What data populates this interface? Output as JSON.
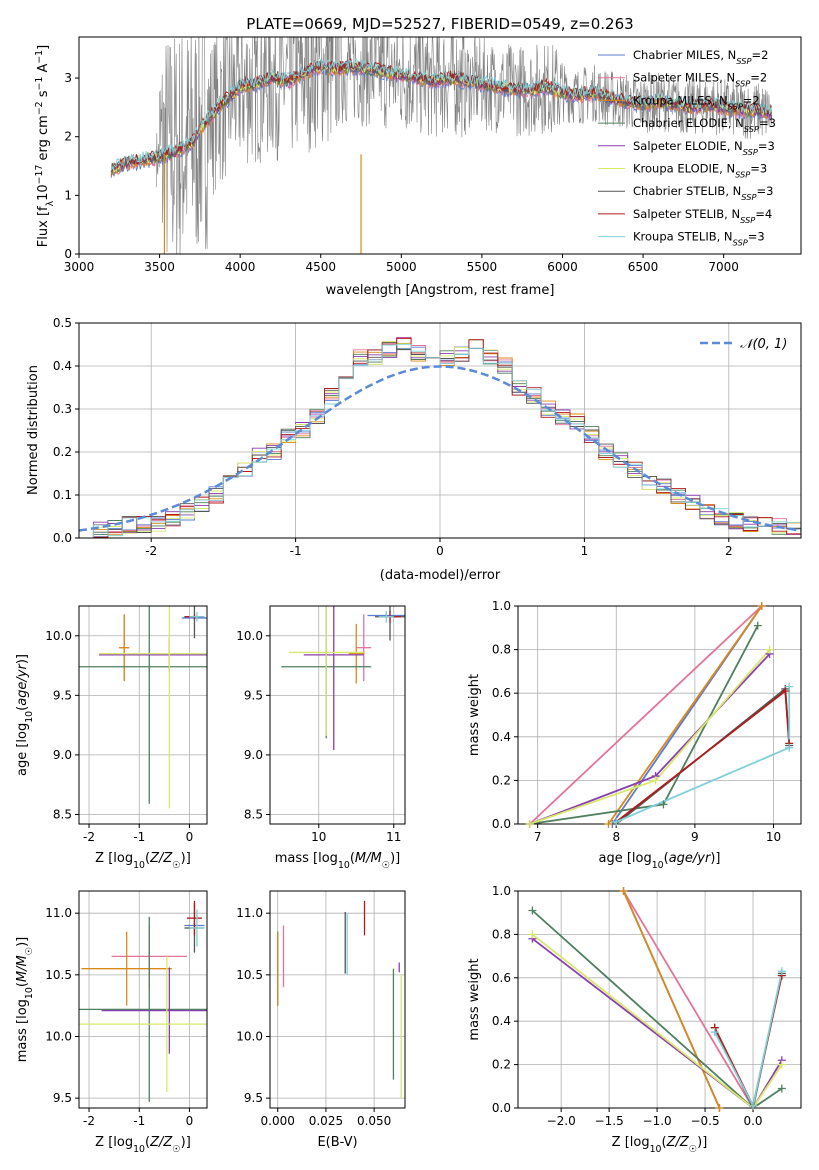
{
  "figure": {
    "title": "PLATE=0669, MJD=52527, FIBERID=0549, z=0.263"
  },
  "series_colors": {
    "Chabrier MILES": "#5b7bd5",
    "Salpeter MILES": "#e57399",
    "Kroupa MILES": "#d98a1a",
    "Chabrier ELODIE": "#4f7f5f",
    "Salpeter ELODIE": "#8a3fb0",
    "Kroupa ELODIE": "#d8e86a",
    "Chabrier STELIB": "#555555",
    "Salpeter STELIB": "#b01c1c",
    "Kroupa STELIB": "#7fd0d8",
    "observed": "#808080"
  },
  "chart_data": [
    {
      "type": "line",
      "title": "PLATE=0669, MJD=52527, FIBERID=0549, z=0.263",
      "xlabel": "wavelength [Angstrom, rest frame]",
      "ylabel": "Flux [fλ10⁻¹⁷ erg cm⁻² s⁻¹ A⁻¹]",
      "xlim": [
        3000,
        7480
      ],
      "ylim": [
        0,
        3.7
      ],
      "xticks": [
        3000,
        3500,
        4000,
        4500,
        5000,
        5500,
        6000,
        6500,
        7000
      ],
      "yticks": [
        0,
        1,
        2,
        3
      ],
      "grid": false,
      "legend_position": "top-right",
      "legend": [
        {
          "name": "Chabrier MILES",
          "sub": "SSP",
          "n": "2",
          "color": "#5b7bd5"
        },
        {
          "name": "Salpeter MILES",
          "sub": "SSP",
          "n": "2",
          "color": "#e57399"
        },
        {
          "name": "Kroupa MILES",
          "sub": "SSP",
          "n": "2",
          "color": "#d98a1a"
        },
        {
          "name": "Chabrier ELODIE",
          "sub": "SSP",
          "n": "3",
          "color": "#4f7f5f"
        },
        {
          "name": "Salpeter ELODIE",
          "sub": "SSP",
          "n": "3",
          "color": "#8a3fb0"
        },
        {
          "name": "Kroupa ELODIE",
          "sub": "SSP",
          "n": "3",
          "color": "#d8e86a"
        },
        {
          "name": "Chabrier STELIB",
          "sub": "SSP",
          "n": "3",
          "color": "#555555"
        },
        {
          "name": "Salpeter STELIB",
          "sub": "SSP",
          "n": "4",
          "color": "#b01c1c"
        },
        {
          "name": "Kroupa STELIB",
          "sub": "SSP",
          "n": "3",
          "color": "#7fd0d8"
        }
      ],
      "model_spectrum": {
        "x": [
          3200,
          3300,
          3400,
          3500,
          3600,
          3700,
          3800,
          3900,
          4000,
          4100,
          4200,
          4300,
          4400,
          4500,
          4600,
          4700,
          4800,
          4900,
          5000,
          5100,
          5200,
          5300,
          5400,
          5500,
          5600,
          5700,
          5800,
          5900,
          6000,
          6100,
          6200,
          6300,
          6400,
          6500,
          6600,
          6700,
          6800,
          6900,
          7000,
          7100,
          7200,
          7300
        ],
        "y": [
          1.45,
          1.55,
          1.6,
          1.65,
          1.75,
          1.9,
          2.3,
          2.6,
          2.85,
          2.9,
          3.0,
          2.95,
          3.1,
          3.2,
          3.15,
          3.2,
          3.15,
          3.1,
          3.05,
          3.0,
          2.95,
          3.0,
          2.95,
          2.9,
          2.85,
          2.8,
          2.8,
          2.85,
          2.75,
          2.7,
          2.75,
          2.65,
          2.6,
          2.55,
          2.6,
          2.55,
          2.5,
          2.55,
          2.5,
          2.45,
          2.45,
          2.4
        ]
      }
    },
    {
      "type": "histogram",
      "xlabel": "(data-model)/error",
      "ylabel": "Normed distribution",
      "xlim": [
        -2.5,
        2.5
      ],
      "ylim": [
        0,
        0.5
      ],
      "xticks": [
        -2,
        -1,
        0,
        1,
        2
      ],
      "yticks": [
        0.0,
        0.1,
        0.2,
        0.3,
        0.4,
        0.5
      ],
      "grid": true,
      "legend_position": "top-right",
      "reference_curve": {
        "name": "𝒩(0, 1)",
        "color": "#5b8ad8"
      },
      "bin_centers": [
        -2.45,
        -2.35,
        -2.25,
        -2.15,
        -2.05,
        -1.95,
        -1.85,
        -1.75,
        -1.65,
        -1.55,
        -1.45,
        -1.35,
        -1.25,
        -1.15,
        -1.05,
        -0.95,
        -0.85,
        -0.75,
        -0.65,
        -0.55,
        -0.45,
        -0.35,
        -0.25,
        -0.15,
        -0.05,
        0.05,
        0.15,
        0.25,
        0.35,
        0.45,
        0.55,
        0.65,
        0.75,
        0.85,
        0.95,
        1.05,
        1.15,
        1.25,
        1.35,
        1.45,
        1.55,
        1.65,
        1.75,
        1.85,
        1.95,
        2.05,
        2.15,
        2.25,
        2.35,
        2.45
      ],
      "typical_values": [
        0.02,
        0.02,
        0.025,
        0.03,
        0.03,
        0.035,
        0.045,
        0.06,
        0.08,
        0.1,
        0.13,
        0.16,
        0.19,
        0.2,
        0.24,
        0.25,
        0.28,
        0.33,
        0.36,
        0.42,
        0.42,
        0.44,
        0.45,
        0.43,
        0.43,
        0.42,
        0.43,
        0.45,
        0.42,
        0.4,
        0.35,
        0.33,
        0.3,
        0.28,
        0.27,
        0.24,
        0.2,
        0.18,
        0.16,
        0.13,
        0.12,
        0.1,
        0.08,
        0.06,
        0.05,
        0.04,
        0.035,
        0.03,
        0.025,
        0.02
      ]
    },
    {
      "type": "errorbar",
      "xlabel": "Z [log10(Z/Z☉)]",
      "ylabel": "age [log10(age/yr)]",
      "xlim": [
        -2.2,
        0.35
      ],
      "ylim": [
        8.42,
        10.25
      ],
      "xticks": [
        -2,
        -1,
        0
      ],
      "yticks": [
        8.5,
        9.0,
        9.5,
        10.0
      ],
      "grid": true,
      "points": [
        {
          "series": "Chabrier MILES",
          "x": 0.1,
          "xerr": 0.25,
          "y": 10.15,
          "yerr": 0.02
        },
        {
          "series": "Salpeter MILES",
          "x": -1.3,
          "xerr": 0.1,
          "y": 9.9,
          "yerr": 0.28
        },
        {
          "series": "Kroupa MILES",
          "x": -1.3,
          "xerr": 0.1,
          "y": 9.9,
          "yerr": 0.28
        },
        {
          "series": "Chabrier ELODIE",
          "x": -0.8,
          "xerr": 1.4,
          "y": 9.74,
          "yerr": 1.15
        },
        {
          "series": "Salpeter ELODIE",
          "x": -0.4,
          "xerr": 1.4,
          "y": 9.84,
          "yerr": 0.14
        },
        {
          "series": "Kroupa ELODIE",
          "x": -0.4,
          "xerr": 1.4,
          "y": 9.85,
          "yerr": 1.3
        },
        {
          "series": "Chabrier STELIB",
          "x": 0.1,
          "xerr": 0.2,
          "y": 10.16,
          "yerr": 0.18
        },
        {
          "series": "Salpeter STELIB",
          "x": 0.1,
          "xerr": 0.2,
          "y": 10.16,
          "yerr": 0.02
        },
        {
          "series": "Kroupa STELIB",
          "x": 0.15,
          "xerr": 0.15,
          "y": 10.16,
          "yerr": 0.04
        }
      ]
    },
    {
      "type": "errorbar",
      "xlabel": "mass [log10(M/M☉)]",
      "ylabel": "",
      "xlim": [
        9.35,
        11.15
      ],
      "ylim": [
        8.42,
        10.25
      ],
      "xticks": [
        10,
        11
      ],
      "yticks": [
        8.5,
        9.0,
        9.5,
        10.0
      ],
      "grid": true,
      "points": [
        {
          "series": "Chabrier MILES",
          "x": 10.9,
          "xerr": 0.25,
          "y": 10.17,
          "yerr": 0.02
        },
        {
          "series": "Salpeter MILES",
          "x": 10.6,
          "xerr": 0.1,
          "y": 9.9,
          "yerr": 0.28
        },
        {
          "series": "Kroupa MILES",
          "x": 10.5,
          "xerr": 0.1,
          "y": 9.85,
          "yerr": 0.25
        },
        {
          "series": "Chabrier ELODIE",
          "x": 10.1,
          "xerr": 0.6,
          "y": 9.74,
          "yerr": 0.6
        },
        {
          "series": "Salpeter ELODIE",
          "x": 10.2,
          "xerr": 0.4,
          "y": 9.84,
          "yerr": 0.8
        },
        {
          "series": "Kroupa ELODIE",
          "x": 10.1,
          "xerr": 0.5,
          "y": 9.86,
          "yerr": 0.7
        },
        {
          "series": "Chabrier STELIB",
          "x": 10.95,
          "xerr": 0.2,
          "y": 10.16,
          "yerr": 0.2
        },
        {
          "series": "Salpeter STELIB",
          "x": 10.95,
          "xerr": 0.15,
          "y": 10.16,
          "yerr": 0.05
        },
        {
          "series": "Kroupa STELIB",
          "x": 10.9,
          "xerr": 0.1,
          "y": 10.16,
          "yerr": 0.05
        }
      ]
    },
    {
      "type": "line",
      "xlabel": "age [log10(age/yr)]",
      "ylabel": "mass weight",
      "xlim": [
        6.75,
        10.35
      ],
      "ylim": [
        0,
        1
      ],
      "xticks": [
        7,
        8,
        9,
        10
      ],
      "yticks": [
        0.0,
        0.2,
        0.4,
        0.6,
        0.8,
        1.0
      ],
      "grid": true,
      "series": [
        {
          "name": "Chabrier MILES",
          "x": [
            7.95,
            9.85
          ],
          "y": [
            0.0,
            1.0
          ]
        },
        {
          "name": "Salpeter MILES",
          "x": [
            6.9,
            9.85
          ],
          "y": [
            0.0,
            1.0
          ]
        },
        {
          "name": "Kroupa MILES",
          "x": [
            7.9,
            9.85
          ],
          "y": [
            0.0,
            1.0
          ]
        },
        {
          "name": "Chabrier ELODIE",
          "x": [
            6.9,
            8.6,
            9.8
          ],
          "y": [
            0.0,
            0.09,
            0.91
          ]
        },
        {
          "name": "Salpeter ELODIE",
          "x": [
            6.9,
            8.5,
            9.95
          ],
          "y": [
            0.0,
            0.22,
            0.78
          ]
        },
        {
          "name": "Kroupa ELODIE",
          "x": [
            6.9,
            8.5,
            9.95
          ],
          "y": [
            0.0,
            0.2,
            0.8
          ]
        },
        {
          "name": "Chabrier STELIB",
          "x": [
            8.0,
            10.15,
            10.2
          ],
          "y": [
            0.0,
            0.62,
            0.36
          ]
        },
        {
          "name": "Salpeter STELIB",
          "x": [
            8.0,
            10.15,
            10.2
          ],
          "y": [
            0.01,
            0.61,
            0.37
          ]
        },
        {
          "name": "Kroupa STELIB",
          "x": [
            8.0,
            10.2,
            10.2
          ],
          "y": [
            0.01,
            0.35,
            0.63
          ]
        }
      ]
    },
    {
      "type": "errorbar",
      "xlabel": "Z [log10(Z/Z☉)]",
      "ylabel": "mass [log10(M/M☉)]",
      "xlim": [
        -2.2,
        0.35
      ],
      "ylim": [
        9.42,
        11.18
      ],
      "xticks": [
        -2,
        -1,
        0
      ],
      "yticks": [
        9.5,
        10.0,
        10.5,
        11.0
      ],
      "grid": true,
      "points": [
        {
          "series": "Chabrier MILES",
          "x": 0.1,
          "xerr": 0.2,
          "y": 10.9,
          "yerr": 0.02
        },
        {
          "series": "Salpeter MILES",
          "x": -0.8,
          "xerr": 0.75,
          "y": 10.65,
          "yerr": 0.25
        },
        {
          "series": "Kroupa MILES",
          "x": -1.25,
          "xerr": 0.9,
          "y": 10.55,
          "yerr": 0.3
        },
        {
          "series": "Chabrier ELODIE",
          "x": -0.8,
          "xerr": 1.4,
          "y": 10.22,
          "yerr": 0.75
        },
        {
          "series": "Salpeter ELODIE",
          "x": -0.4,
          "xerr": 1.35,
          "y": 10.21,
          "yerr": 0.35
        },
        {
          "series": "Kroupa ELODIE",
          "x": -0.45,
          "xerr": 1.8,
          "y": 10.1,
          "yerr": 0.55
        },
        {
          "series": "Chabrier STELIB",
          "x": 0.1,
          "xerr": 0.2,
          "y": 10.88,
          "yerr": 0.2
        },
        {
          "series": "Salpeter STELIB",
          "x": 0.1,
          "xerr": 0.15,
          "y": 10.96,
          "yerr": 0.14
        },
        {
          "series": "Kroupa STELIB",
          "x": 0.15,
          "xerr": 0.15,
          "y": 10.88,
          "yerr": 0.15
        }
      ]
    },
    {
      "type": "errorbar",
      "xlabel": "E(B-V)",
      "ylabel": "",
      "xlim": [
        -0.004,
        0.066
      ],
      "ylim": [
        9.42,
        11.18
      ],
      "xticks": [
        0.0,
        0.025,
        0.05
      ],
      "yticks": [
        9.5,
        10.0,
        10.5,
        11.0
      ],
      "grid": true,
      "points": [
        {
          "series": "Chabrier MILES",
          "x": 0.0,
          "y": 10.55,
          "yerr": 0.3
        },
        {
          "series": "Salpeter MILES",
          "x": 0.003,
          "y": 10.65,
          "yerr": 0.25
        },
        {
          "series": "Kroupa MILES",
          "x": 0.0,
          "y": 10.55,
          "yerr": 0.3
        },
        {
          "series": "Chabrier ELODIE",
          "x": 0.06,
          "y": 10.1,
          "yerr": 0.45
        },
        {
          "series": "Salpeter ELODIE",
          "x": 0.063,
          "y": 10.56,
          "yerr": 0.04
        },
        {
          "series": "Kroupa ELODIE",
          "x": 0.064,
          "y": 10.0,
          "yerr": 0.5
        },
        {
          "series": "Chabrier STELIB",
          "x": 0.035,
          "y": 10.76,
          "yerr": 0.25
        },
        {
          "series": "Salpeter STELIB",
          "x": 0.045,
          "y": 10.96,
          "yerr": 0.14
        },
        {
          "series": "Kroupa STELIB",
          "x": 0.036,
          "y": 10.75,
          "yerr": 0.25
        }
      ]
    },
    {
      "type": "line",
      "xlabel": "Z [log10(Z/Z☉)]",
      "ylabel": "mass weight",
      "xlim": [
        -2.45,
        0.5
      ],
      "ylim": [
        0,
        1
      ],
      "xticks": [
        -2.0,
        -1.5,
        -1.0,
        -0.5,
        0.0
      ],
      "yticks": [
        0.0,
        0.2,
        0.4,
        0.6,
        0.8,
        1.0
      ],
      "grid": true,
      "series": [
        {
          "name": "Chabrier MILES",
          "x": [
            -1.35,
            -0.35
          ],
          "y": [
            1.0,
            0.0
          ]
        },
        {
          "name": "Salpeter MILES",
          "x": [
            -1.35,
            0.0
          ],
          "y": [
            1.0,
            0.0
          ]
        },
        {
          "name": "Kroupa MILES",
          "x": [
            -1.35,
            -0.35
          ],
          "y": [
            1.0,
            0.0
          ]
        },
        {
          "name": "Chabrier ELODIE",
          "x": [
            -2.3,
            0.0,
            0.3
          ],
          "y": [
            0.91,
            0.0,
            0.09
          ]
        },
        {
          "name": "Salpeter ELODIE",
          "x": [
            -2.3,
            0.0,
            0.3
          ],
          "y": [
            0.78,
            0.0,
            0.22
          ]
        },
        {
          "name": "Kroupa ELODIE",
          "x": [
            -2.3,
            0.0,
            0.3
          ],
          "y": [
            0.8,
            0.0,
            0.2
          ]
        },
        {
          "name": "Chabrier STELIB",
          "x": [
            -0.4,
            0.0,
            0.3
          ],
          "y": [
            0.37,
            0.0,
            0.62
          ]
        },
        {
          "name": "Salpeter STELIB",
          "x": [
            -0.4,
            0.0,
            0.3
          ],
          "y": [
            0.37,
            0.01,
            0.61
          ]
        },
        {
          "name": "Kroupa STELIB",
          "x": [
            -0.4,
            0.0,
            0.3
          ],
          "y": [
            0.35,
            0.01,
            0.63
          ]
        }
      ]
    }
  ]
}
